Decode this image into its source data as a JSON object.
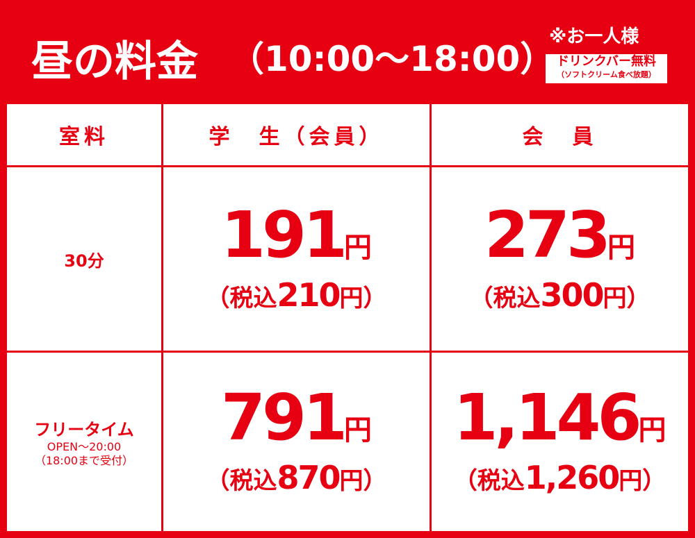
{
  "header": {
    "title": "昼の料金",
    "hours": "（10:00～18:00）",
    "note": "※お一人様",
    "badge": "ドリンクバー無料",
    "badge_sub": "（ソフトクリーム食べ放題）"
  },
  "table": {
    "columns": [
      "室料",
      "学　生（会員）",
      "会　員"
    ],
    "rows": [
      {
        "label": "30分",
        "cells": [
          {
            "price": "191",
            "unit": "円",
            "tax_prefix": "（税込",
            "tax_price": "210",
            "tax_suffix": "円）"
          },
          {
            "price": "273",
            "unit": "円",
            "tax_prefix": "（税込",
            "tax_price": "300",
            "tax_suffix": "円）"
          }
        ]
      },
      {
        "label": "フリータイム",
        "label_sub1": "OPEN～20:00",
        "label_sub2": "（18:00まで受付）",
        "cells": [
          {
            "price": "791",
            "unit": "円",
            "tax_prefix": "（税込",
            "tax_price": "870",
            "tax_suffix": "円）"
          },
          {
            "price": "1,146",
            "unit": "円",
            "tax_prefix": "（税込",
            "tax_price": "1,260",
            "tax_suffix": "円）"
          }
        ]
      }
    ]
  }
}
